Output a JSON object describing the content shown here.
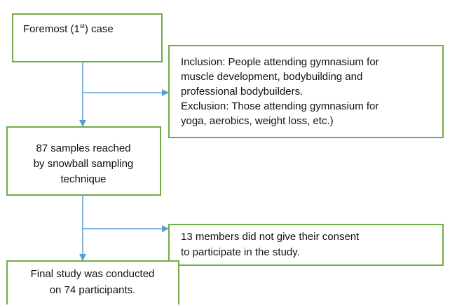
{
  "nodes": [
    {
      "label": {
        "before": "Foremost (1",
        "superscript": "st",
        "after": ") case"
      }
    },
    {
      "lines": [
        "Inclusion: People attending gymnasium for",
        "muscle development, bodybuilding and",
        "professional bodybuilders.",
        "Exclusion: Those attending gymnasium for",
        "yoga, aerobics, weight loss, etc.)"
      ]
    },
    {
      "lines": [
        "87 samples reached",
        "by snowball sampling",
        "technique"
      ]
    },
    {
      "lines": [
        "13 members did not give their consent",
        "to participate in the study."
      ]
    },
    {
      "lines": [
        "Final study was conducted",
        "on 74 participants."
      ]
    }
  ]
}
